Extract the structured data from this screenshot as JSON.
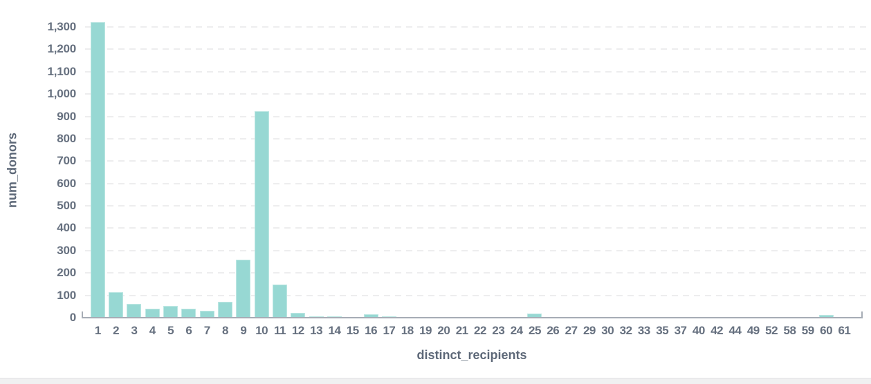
{
  "chart_data": {
    "type": "bar",
    "title": "",
    "xlabel": "distinct_recipients",
    "ylabel": "num_donors",
    "categories": [
      "1",
      "2",
      "3",
      "4",
      "5",
      "6",
      "7",
      "8",
      "9",
      "10",
      "11",
      "12",
      "13",
      "14",
      "15",
      "16",
      "17",
      "18",
      "19",
      "20",
      "21",
      "22",
      "23",
      "24",
      "25",
      "26",
      "27",
      "29",
      "30",
      "32",
      "33",
      "35",
      "37",
      "40",
      "42",
      "44",
      "49",
      "52",
      "58",
      "59",
      "60",
      "61"
    ],
    "values": [
      1323,
      115,
      63,
      40,
      52,
      40,
      30,
      72,
      260,
      922,
      148,
      22,
      6,
      6,
      4,
      14,
      6,
      4,
      4,
      4,
      3,
      3,
      4,
      4,
      18,
      3,
      3,
      3,
      3,
      3,
      3,
      3,
      4,
      4,
      4,
      4,
      4,
      3,
      3,
      4,
      12,
      4
    ],
    "y_tick_values": [
      0,
      100,
      200,
      300,
      400,
      500,
      600,
      700,
      800,
      900,
      1000,
      1100,
      1200,
      1300
    ],
    "y_tick_labels": [
      "0",
      "100",
      "200",
      "300",
      "400",
      "500",
      "600",
      "700",
      "800",
      "900",
      "1,000",
      "1,100",
      "1,200",
      "1,300"
    ],
    "ylim": [
      0,
      1400
    ],
    "grid": "horizontal-dashed",
    "legend": "none",
    "colors": {
      "bar_fill": "#97d8d3",
      "bar_edge": "#bde7e3",
      "gridline": "#ededee",
      "axis_line": "#a6acb5",
      "tick_text": "#66707f",
      "title_text": "#5d6878",
      "background": "#ffffff",
      "footer_strip": "#f0f0f1"
    }
  }
}
